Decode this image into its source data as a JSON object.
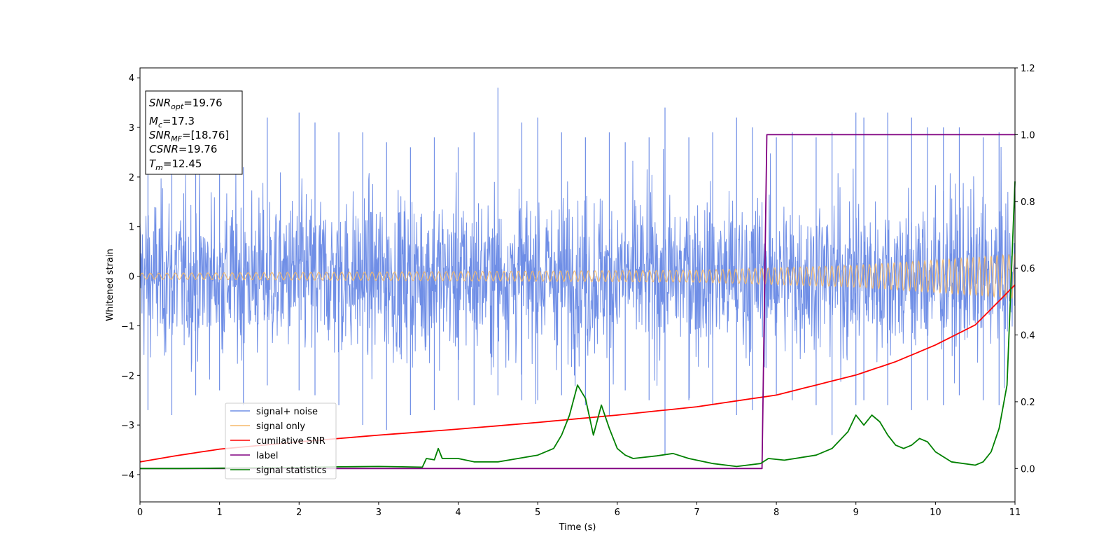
{
  "chart_data": {
    "type": "line",
    "xlabel": "Time (s)",
    "ylabel": "Whitened strain",
    "xlim": [
      0,
      11
    ],
    "ylim": [
      -4.55,
      4.2
    ],
    "y2lim": [
      -0.1,
      1.2
    ],
    "x_ticks": [
      "0",
      "1",
      "2",
      "3",
      "4",
      "5",
      "6",
      "7",
      "8",
      "9",
      "10",
      "11"
    ],
    "y_ticks": [
      "−4",
      "−3",
      "−2",
      "−1",
      "0",
      "1",
      "2",
      "3",
      "4"
    ],
    "y2_ticks": [
      "0.0",
      "0.2",
      "0.4",
      "0.6",
      "0.8",
      "1.0",
      "1.2"
    ],
    "grid": false,
    "legend_position": "lower-left",
    "info_box": {
      "snr_opt": {
        "sym": "SNR",
        "sub": "opt",
        "value": "=19.76"
      },
      "mc": {
        "sym": "M",
        "sub": "c",
        "value": "=17.3"
      },
      "snr_mf": {
        "sym": "SNR",
        "sub": "MF",
        "value": "=[18.76]"
      },
      "csnr": {
        "sym": "CSNR",
        "value": "=19.76"
      },
      "tm": {
        "sym": "T",
        "sub": "m",
        "value": "=12.45"
      }
    },
    "series": [
      {
        "name": "signal+ noise",
        "axis": "left",
        "color": "#6f8ee6",
        "spikes": [
          [
            0.1,
            2.1,
            -2.7
          ],
          [
            0.4,
            2.6,
            -2.8
          ],
          [
            0.7,
            2.9,
            -2.4
          ],
          [
            1.0,
            2.8,
            -2.3
          ],
          [
            1.3,
            2.2,
            -2.6
          ],
          [
            1.6,
            3.2,
            -2.2
          ],
          [
            2.0,
            3.3,
            -2.3
          ],
          [
            2.2,
            3.1,
            -2.4
          ],
          [
            2.5,
            2.9,
            -2.6
          ],
          [
            2.8,
            2.9,
            -3.0
          ],
          [
            3.1,
            2.7,
            -3.1
          ],
          [
            3.4,
            2.6,
            -2.8
          ],
          [
            3.7,
            2.8,
            -2.7
          ],
          [
            4.0,
            2.6,
            -2.5
          ],
          [
            4.2,
            2.9,
            -2.6
          ],
          [
            4.5,
            3.8,
            -2.4
          ],
          [
            4.8,
            3.1,
            -2.5
          ],
          [
            5.0,
            3.2,
            -2.5
          ],
          [
            5.3,
            2.9,
            -2.4
          ],
          [
            5.6,
            2.8,
            -2.6
          ],
          [
            5.9,
            2.9,
            -2.8
          ],
          [
            6.1,
            2.7,
            -2.3
          ],
          [
            6.4,
            2.8,
            -2.5
          ],
          [
            6.6,
            3.4,
            -3.6
          ],
          [
            6.9,
            2.8,
            -2.5
          ],
          [
            7.2,
            2.9,
            -2.6
          ],
          [
            7.5,
            3.2,
            -2.8
          ],
          [
            7.7,
            3.0,
            -2.7
          ],
          [
            8.0,
            2.8,
            -2.4
          ],
          [
            8.2,
            2.9,
            -2.5
          ],
          [
            8.5,
            2.8,
            -2.6
          ],
          [
            8.7,
            2.9,
            -3.2
          ],
          [
            9.0,
            3.3,
            -2.6
          ],
          [
            9.1,
            3.2,
            -2.5
          ],
          [
            9.4,
            3.3,
            -2.6
          ],
          [
            9.7,
            3.2,
            -2.7
          ],
          [
            9.9,
            3.0,
            -2.5
          ],
          [
            10.1,
            3.0,
            -2.6
          ],
          [
            10.3,
            3.0,
            -2.4
          ],
          [
            10.6,
            2.8,
            -2.5
          ],
          [
            10.8,
            2.9,
            -2.6
          ]
        ]
      },
      {
        "name": "signal only",
        "axis": "left",
        "color": "#f5b96a",
        "amplitude": [
          [
            0,
            0.06
          ],
          [
            7,
            0.12
          ],
          [
            9,
            0.22
          ],
          [
            10.5,
            0.38
          ],
          [
            11,
            0.45
          ]
        ]
      },
      {
        "name": "cumilative SNR",
        "axis": "right",
        "color": "#ff0000",
        "x": [
          0,
          0.5,
          1,
          2,
          3,
          4,
          5,
          6,
          7,
          8,
          9,
          9.5,
          10,
          10.5,
          11
        ],
        "y": [
          0.02,
          0.04,
          0.058,
          0.08,
          0.1,
          0.118,
          0.138,
          0.16,
          0.185,
          0.22,
          0.28,
          0.32,
          0.37,
          0.43,
          0.55
        ]
      },
      {
        "name": "label",
        "axis": "right",
        "color": "#800080",
        "x": [
          0,
          7.82,
          7.88,
          11
        ],
        "y": [
          0,
          0,
          1,
          1
        ]
      },
      {
        "name": "signal statistics",
        "axis": "right",
        "color": "#008000",
        "x": [
          0,
          0.5,
          1,
          1.5,
          2,
          2.5,
          3,
          3.3,
          3.55,
          3.6,
          3.7,
          3.75,
          3.8,
          4,
          4.2,
          4.5,
          4.7,
          5,
          5.2,
          5.3,
          5.4,
          5.5,
          5.6,
          5.7,
          5.8,
          5.9,
          6.0,
          6.1,
          6.2,
          6.5,
          6.7,
          6.9,
          7.2,
          7.5,
          7.8,
          7.9,
          8.1,
          8.5,
          8.7,
          8.9,
          9.0,
          9.1,
          9.2,
          9.3,
          9.4,
          9.5,
          9.6,
          9.7,
          9.8,
          9.9,
          10.0,
          10.2,
          10.5,
          10.6,
          10.7,
          10.8,
          10.9,
          11
        ],
        "y": [
          0,
          0,
          0.001,
          0.002,
          0.003,
          0.005,
          0.006,
          0.005,
          0.004,
          0.03,
          0.026,
          0.06,
          0.03,
          0.03,
          0.02,
          0.02,
          0.028,
          0.04,
          0.06,
          0.1,
          0.16,
          0.25,
          0.21,
          0.1,
          0.19,
          0.12,
          0.06,
          0.04,
          0.03,
          0.038,
          0.045,
          0.03,
          0.015,
          0.006,
          0.015,
          0.03,
          0.025,
          0.04,
          0.06,
          0.11,
          0.16,
          0.13,
          0.16,
          0.14,
          0.1,
          0.07,
          0.06,
          0.07,
          0.09,
          0.08,
          0.05,
          0.02,
          0.01,
          0.02,
          0.05,
          0.12,
          0.25,
          0.86
        ]
      }
    ]
  }
}
